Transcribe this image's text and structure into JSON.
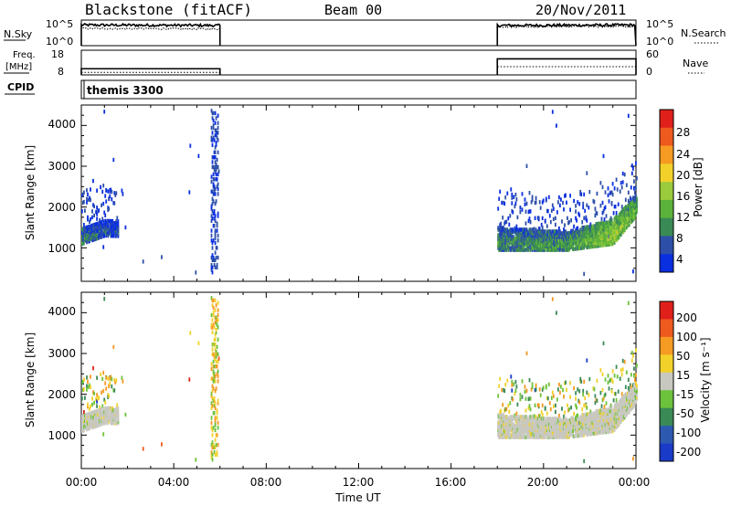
{
  "header": {
    "station": "Blackstone (fitACF)",
    "beam": "Beam 00",
    "date": "20/Nov/2011"
  },
  "noise_panel": {
    "left_label": "N.Sky",
    "right_label": "N.Search",
    "left_ticks": [
      "10^5",
      "10^0"
    ],
    "right_ticks": [
      "10^5",
      "10^0"
    ]
  },
  "freq_panel": {
    "left_label_1": "Freq.",
    "left_label_2": "[MHz]",
    "right_label": "Nave",
    "left_ticks": [
      "18",
      "8"
    ],
    "right_ticks": [
      "60",
      "0"
    ]
  },
  "cpid_panel": {
    "label": "CPID",
    "mode": "themis 3300"
  },
  "power_panel": {
    "ylabel": "Slant Range [km]",
    "yticks": [
      "4000",
      "3000",
      "2000",
      "1000"
    ],
    "colorbar_label": "Power [dB]",
    "colorbar_ticks": [
      "28",
      "24",
      "20",
      "16",
      "12",
      "8",
      "4"
    ],
    "colors": [
      "#0a2fe0",
      "#2d4fa8",
      "#3a8a56",
      "#5ab23a",
      "#9acb3c",
      "#f2d12a",
      "#f59a22",
      "#ee5a1e",
      "#e0201a"
    ]
  },
  "velocity_panel": {
    "ylabel": "Slant Range [km]",
    "yticks": [
      "4000",
      "3000",
      "2000",
      "1000"
    ],
    "colorbar_label": "Velocity [m s⁻¹]",
    "colorbar_ticks": [
      "200",
      "100",
      "50",
      "15",
      "-15",
      "-50",
      "-100",
      "-200"
    ],
    "colors": [
      "#1a3ac8",
      "#2d5ab0",
      "#3a8a56",
      "#6cc23a",
      "#c8c8c0",
      "#f2d12a",
      "#f59a22",
      "#ee5a1e",
      "#e0201a"
    ]
  },
  "xaxis": {
    "ticks": [
      "00:00",
      "04:00",
      "08:00",
      "12:00",
      "16:00",
      "20:00",
      "00:00"
    ],
    "label": "Time UT"
  },
  "chart_data": {
    "type": "heatmap",
    "x_range_hours": [
      0,
      24
    ],
    "y_range_km": [
      180,
      4500
    ],
    "data_periods_hours": [
      [
        0.0,
        6.0
      ],
      [
        18.0,
        24.0
      ]
    ],
    "noise": {
      "sky_log10": [
        [
          0,
          4.3
        ],
        [
          6,
          4.2
        ],
        [
          18,
          4.2
        ],
        [
          24,
          4.3
        ]
      ],
      "search_log10": [
        [
          0,
          3.5
        ],
        [
          6,
          3.4
        ],
        [
          18,
          3.9
        ],
        [
          24,
          4.0
        ]
      ]
    },
    "frequency_mhz": [
      [
        0.0,
        10.5
      ],
      [
        6.0,
        10.5
      ],
      [
        18.0,
        14.5
      ],
      [
        24.0,
        14.5
      ]
    ],
    "nave": [
      [
        0.0,
        6
      ],
      [
        6.0,
        6
      ],
      [
        18.0,
        20
      ],
      [
        24.0,
        20
      ]
    ],
    "power_main_band": [
      {
        "t": 0.0,
        "range_km": [
          1100,
          1500
        ],
        "power_db": 12
      },
      {
        "t": 1.0,
        "range_km": [
          1300,
          1700
        ],
        "power_db": 8
      },
      {
        "t": 18.0,
        "range_km": [
          950,
          1500
        ],
        "power_db": 12
      },
      {
        "t": 21.0,
        "range_km": [
          950,
          1400
        ],
        "power_db": 14
      },
      {
        "t": 23.0,
        "range_km": [
          1100,
          1700
        ],
        "power_db": 20
      },
      {
        "t": 24.0,
        "range_km": [
          1800,
          2300
        ],
        "power_db": 16
      }
    ],
    "velocity_main_band": [
      {
        "t": 0.0,
        "range_km": [
          1100,
          1500
        ],
        "velocity_ms": 0
      },
      {
        "t": 1.0,
        "range_km": [
          1300,
          1700
        ],
        "velocity_ms": -10
      },
      {
        "t": 18.0,
        "range_km": [
          950,
          1500
        ],
        "velocity_ms": 0
      },
      {
        "t": 21.0,
        "range_km": [
          950,
          1400
        ],
        "velocity_ms": -20
      },
      {
        "t": 24.0,
        "range_km": [
          1800,
          2300
        ],
        "velocity_ms": -40
      }
    ]
  }
}
